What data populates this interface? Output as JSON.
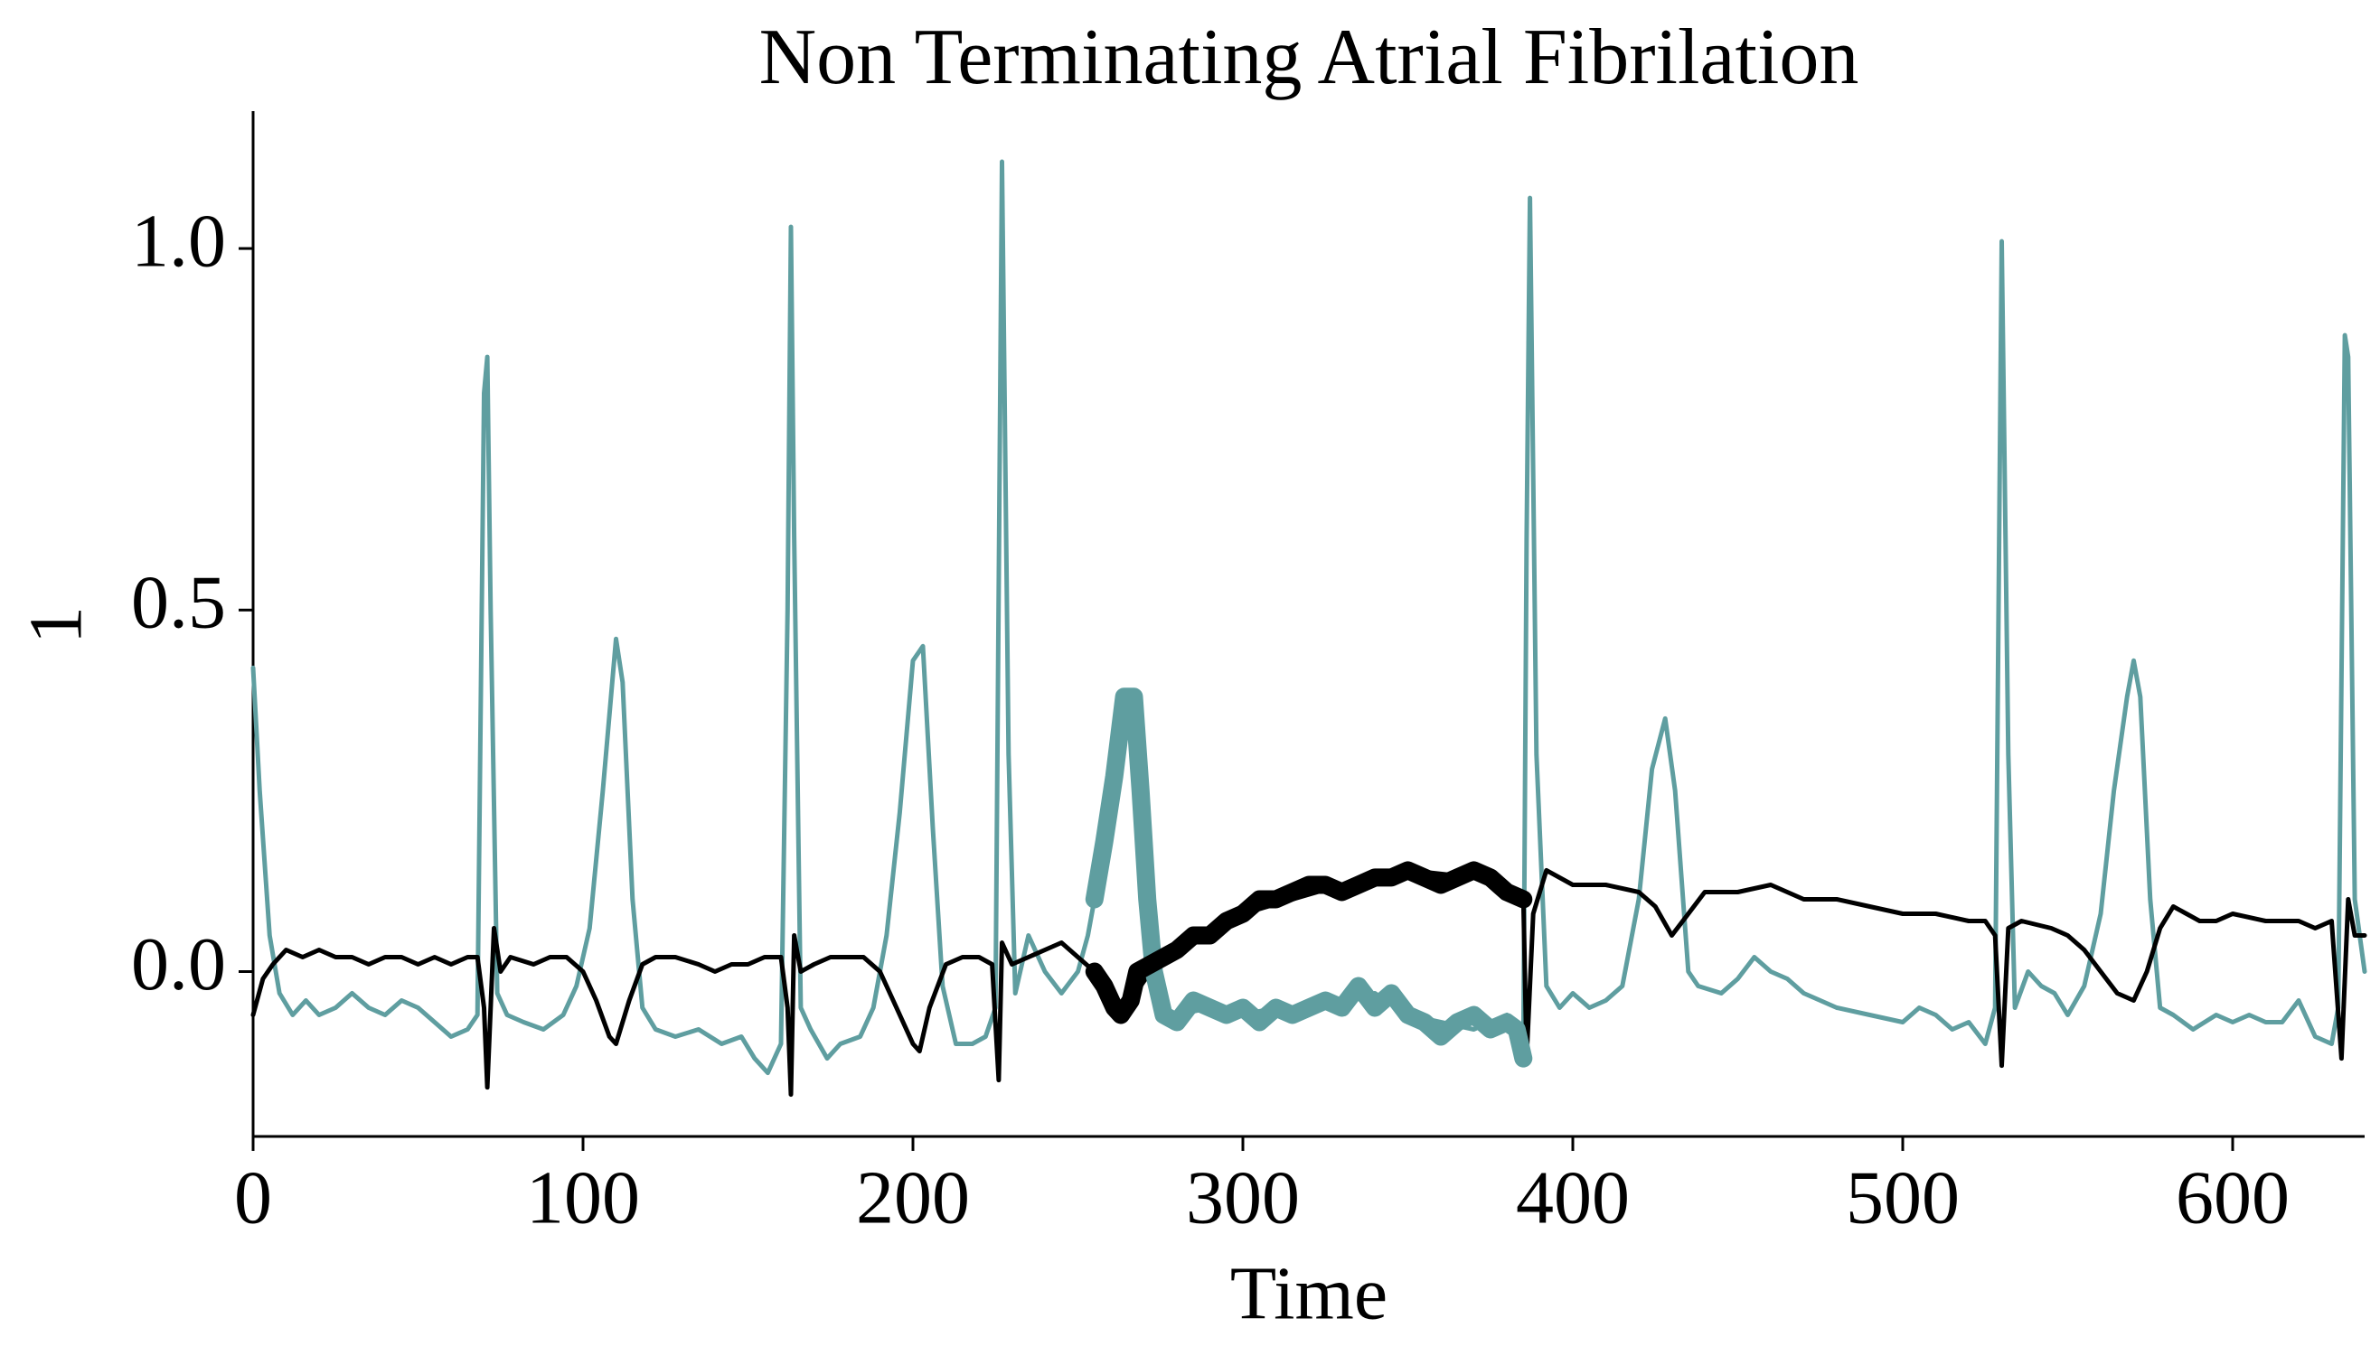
{
  "chart_data": {
    "type": "line",
    "title": "Non Terminating Atrial Fibrilation",
    "xlabel": "Time",
    "ylabel": "1",
    "xlim": [
      0,
      640
    ],
    "ylim": [
      -0.228,
      1.19
    ],
    "xticks": [
      0,
      100,
      200,
      300,
      400,
      500,
      600
    ],
    "yticks": [
      {
        "value": 0,
        "label": "0.0"
      },
      0.5,
      {
        "value": 1,
        "label": "1.0"
      }
    ],
    "grid": false,
    "series": [
      {
        "color": "#5f9ea0",
        "linewidth": 2,
        "x": [
          0,
          2,
          5,
          8,
          12,
          16,
          20,
          25,
          30,
          35,
          40,
          45,
          50,
          55,
          60,
          65,
          68,
          70,
          71,
          72,
          74,
          77,
          82,
          88,
          94,
          98,
          102,
          106,
          110,
          112,
          115,
          118,
          122,
          128,
          135,
          142,
          148,
          152,
          156,
          160,
          162,
          163,
          164,
          166,
          169,
          174,
          178,
          184,
          188,
          192,
          196,
          200,
          203,
          206,
          209,
          213,
          218,
          222,
          225,
          227,
          229,
          231,
          235,
          240,
          245,
          250,
          253,
          255,
          260,
          265,
          268,
          272,
          276,
          280,
          290,
          300,
          310,
          320,
          330,
          340,
          350,
          360,
          370,
          380,
          385,
          386,
          387,
          389,
          392,
          396,
          400,
          405,
          410,
          415,
          420,
          424,
          428,
          431,
          435,
          438,
          445,
          450,
          455,
          460,
          465,
          470,
          475,
          480,
          490,
          500,
          505,
          510,
          515,
          520,
          525,
          528,
          530,
          532,
          534,
          538,
          542,
          546,
          550,
          555,
          560,
          564,
          568,
          570,
          572,
          575,
          578,
          582,
          588,
          595,
          600,
          605,
          610,
          615,
          620,
          625,
          630,
          632,
          634,
          635,
          637,
          640
        ],
        "values": [
          0.42,
          0.25,
          0.05,
          -0.03,
          -0.06,
          -0.04,
          -0.06,
          -0.05,
          -0.03,
          -0.05,
          -0.06,
          -0.04,
          -0.05,
          -0.07,
          -0.09,
          -0.08,
          -0.06,
          0.8,
          0.85,
          0.5,
          -0.03,
          -0.06,
          -0.07,
          -0.08,
          -0.06,
          -0.02,
          0.06,
          0.25,
          0.46,
          0.4,
          0.1,
          -0.05,
          -0.08,
          -0.09,
          -0.08,
          -0.1,
          -0.09,
          -0.12,
          -0.14,
          -0.1,
          0.5,
          1.03,
          0.6,
          -0.05,
          -0.08,
          -0.12,
          -0.1,
          -0.09,
          -0.05,
          0.05,
          0.22,
          0.43,
          0.45,
          0.2,
          -0.02,
          -0.1,
          -0.1,
          -0.09,
          -0.05,
          1.12,
          0.3,
          -0.03,
          0.05,
          0.0,
          -0.03,
          0.0,
          0.05,
          0.1,
          0.25,
          0.38,
          0.3,
          0.05,
          -0.07,
          -0.06,
          -0.05,
          -0.06,
          -0.05,
          -0.06,
          -0.04,
          -0.03,
          -0.06,
          -0.07,
          -0.08,
          -0.06,
          -0.1,
          0.6,
          1.07,
          0.3,
          -0.02,
          -0.05,
          -0.03,
          -0.05,
          -0.04,
          -0.02,
          0.1,
          0.28,
          0.35,
          0.25,
          0.0,
          -0.02,
          -0.03,
          -0.01,
          0.02,
          0.0,
          -0.01,
          -0.03,
          -0.04,
          -0.05,
          -0.06,
          -0.07,
          -0.05,
          -0.06,
          -0.08,
          -0.07,
          -0.1,
          -0.05,
          1.01,
          0.3,
          -0.05,
          0.0,
          -0.02,
          -0.03,
          -0.06,
          -0.02,
          0.08,
          0.25,
          0.38,
          0.43,
          0.38,
          0.1,
          -0.05,
          -0.06,
          -0.08,
          -0.06,
          -0.07,
          -0.06,
          -0.07,
          -0.07,
          -0.04,
          -0.09,
          -0.1,
          -0.05,
          0.88,
          0.85,
          0.1,
          0.0
        ]
      },
      {
        "color": "#000000",
        "linewidth": 2,
        "x": [
          0,
          3,
          6,
          10,
          15,
          20,
          25,
          30,
          35,
          40,
          45,
          50,
          55,
          60,
          65,
          68,
          70,
          71,
          72,
          73,
          75,
          78,
          85,
          90,
          95,
          100,
          104,
          108,
          110,
          114,
          118,
          122,
          128,
          135,
          140,
          145,
          150,
          155,
          160,
          162,
          163,
          164,
          166,
          170,
          175,
          180,
          185,
          190,
          195,
          200,
          202,
          205,
          210,
          215,
          220,
          224,
          226,
          227,
          230,
          235,
          240,
          245,
          250,
          255,
          263,
          275,
          300,
          330,
          350,
          370,
          385,
          386,
          388,
          392,
          400,
          410,
          420,
          425,
          430,
          435,
          440,
          450,
          460,
          470,
          480,
          490,
          500,
          510,
          520,
          525,
          528,
          530,
          532,
          536,
          545,
          550,
          555,
          560,
          565,
          570,
          574,
          578,
          582,
          586,
          590,
          595,
          600,
          610,
          620,
          625,
          630,
          633,
          635,
          637,
          640
        ],
        "values": [
          -0.06,
          -0.01,
          0.01,
          0.03,
          0.02,
          0.03,
          0.02,
          0.02,
          0.01,
          0.02,
          0.02,
          0.01,
          0.02,
          0.01,
          0.02,
          0.02,
          -0.05,
          -0.16,
          -0.05,
          0.06,
          0.0,
          0.02,
          0.01,
          0.02,
          0.02,
          0.0,
          -0.04,
          -0.09,
          -0.1,
          -0.04,
          0.01,
          0.02,
          0.02,
          0.01,
          0.0,
          0.01,
          0.01,
          0.02,
          0.02,
          -0.05,
          -0.17,
          0.05,
          0.0,
          0.01,
          0.02,
          0.02,
          0.02,
          0.0,
          -0.05,
          -0.1,
          -0.11,
          -0.05,
          0.01,
          0.02,
          0.02,
          0.01,
          -0.15,
          0.04,
          0.01,
          0.02,
          0.03,
          0.04,
          0.02,
          0.0,
          -0.06,
          0.02,
          0.08,
          0.12,
          0.14,
          0.13,
          0.1,
          -0.12,
          0.08,
          0.14,
          0.12,
          0.12,
          0.11,
          0.09,
          0.05,
          0.08,
          0.11,
          0.11,
          0.12,
          0.1,
          0.1,
          0.09,
          0.08,
          0.08,
          0.07,
          0.07,
          0.05,
          -0.13,
          0.06,
          0.07,
          0.06,
          0.05,
          0.03,
          0.0,
          -0.03,
          -0.04,
          0.0,
          0.06,
          0.09,
          0.08,
          0.07,
          0.07,
          0.08,
          0.07,
          0.07,
          0.06,
          0.07,
          -0.12,
          0.1,
          0.05,
          0.05
        ]
      },
      {
        "color": "#5f9ea0",
        "linewidth": 8,
        "x": [
          255,
          258,
          261,
          264,
          267,
          269,
          271,
          273,
          276,
          280,
          285,
          290,
          295,
          300,
          305,
          310,
          315,
          320,
          325,
          330,
          335,
          340,
          345,
          350,
          355,
          360,
          365,
          370,
          375,
          380,
          383,
          385
        ],
        "values": [
          0.1,
          0.18,
          0.27,
          0.38,
          0.38,
          0.25,
          0.1,
          0.0,
          -0.06,
          -0.07,
          -0.04,
          -0.05,
          -0.06,
          -0.05,
          -0.07,
          -0.05,
          -0.06,
          -0.05,
          -0.04,
          -0.05,
          -0.02,
          -0.05,
          -0.03,
          -0.06,
          -0.07,
          -0.09,
          -0.07,
          -0.06,
          -0.08,
          -0.07,
          -0.08,
          -0.12
        ]
      },
      {
        "color": "#000000",
        "linewidth": 8,
        "x": [
          255,
          258,
          261,
          263,
          266,
          268,
          272,
          276,
          280,
          285,
          290,
          295,
          300,
          305,
          310,
          315,
          320,
          325,
          330,
          335,
          340,
          345,
          350,
          355,
          360,
          365,
          370,
          375,
          380,
          385
        ],
        "values": [
          0.0,
          -0.02,
          -0.05,
          -0.06,
          -0.04,
          0.0,
          0.01,
          0.02,
          0.03,
          0.05,
          0.05,
          0.07,
          0.08,
          0.1,
          0.1,
          0.11,
          0.12,
          0.12,
          0.11,
          0.12,
          0.13,
          0.13,
          0.14,
          0.13,
          0.12,
          0.13,
          0.14,
          0.13,
          0.11,
          0.1
        ]
      }
    ]
  }
}
